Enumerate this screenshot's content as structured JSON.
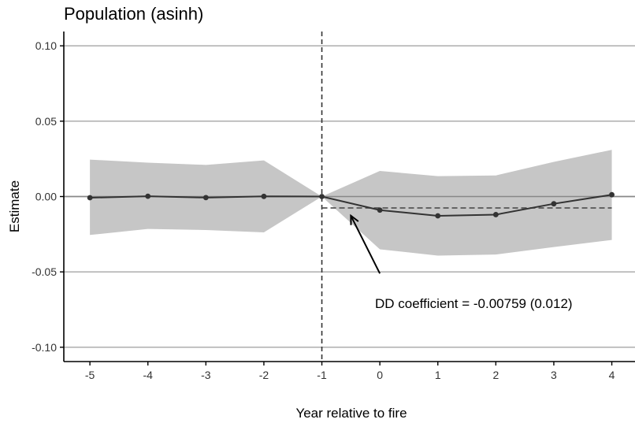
{
  "chart_data": {
    "type": "line",
    "title": "Population (asinh)",
    "xlabel": "Year relative to fire",
    "ylabel": "Estimate",
    "x": [
      -5,
      -4,
      -3,
      -2,
      -1,
      0,
      1,
      2,
      3,
      4
    ],
    "xticks": [
      "-5",
      "-4",
      "-3",
      "-2",
      "-1",
      "0",
      "1",
      "2",
      "3",
      "4"
    ],
    "yticks": [
      "0.10",
      "0.05",
      "0.00",
      "-0.05",
      "-0.10"
    ],
    "ytick_values": [
      0.1,
      0.05,
      0.0,
      -0.05,
      -0.1
    ],
    "xlim": [
      -5.45,
      4.4
    ],
    "ylim": [
      -0.1095,
      0.1095
    ],
    "series": [
      {
        "values": [
          -0.0008,
          0.0002,
          -0.0007,
          0.0001,
          0.0,
          -0.009,
          -0.0128,
          -0.012,
          -0.0048,
          0.0012
        ],
        "ci_upper": [
          0.0245,
          0.0225,
          0.021,
          0.024,
          0.0,
          0.017,
          0.0135,
          0.014,
          0.023,
          0.031
        ],
        "ci_lower": [
          -0.0255,
          -0.0215,
          -0.0222,
          -0.0238,
          0.0,
          -0.035,
          -0.0392,
          -0.0385,
          -0.0335,
          -0.0288
        ]
      }
    ],
    "reference_line": {
      "x": -1,
      "style": "dashed"
    },
    "dd_line": {
      "value": -0.00759,
      "x_start": -1,
      "x_end": 4
    },
    "annotation": {
      "text": "DD coefficient = -0.00759 (0.012)",
      "arrow_from": [
        0.0,
        -0.05
      ],
      "arrow_to": [
        -0.5,
        -0.0085
      ]
    },
    "grid": "horizontal",
    "colors": {
      "band": "#c6c6c6",
      "line": "#333333",
      "grid": "#b3b3b3",
      "zero": "#888888"
    }
  }
}
